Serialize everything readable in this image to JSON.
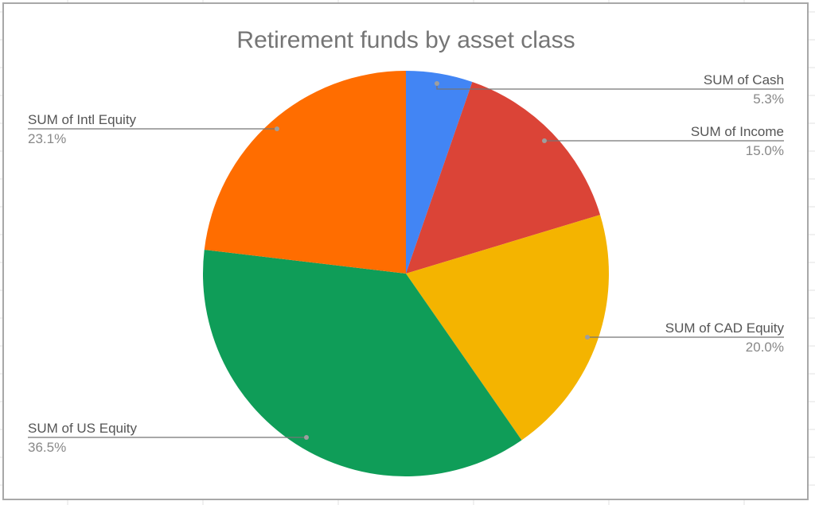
{
  "chart_data": {
    "type": "pie",
    "title": "Retirement funds by asset class",
    "slices": [
      {
        "label": "SUM of Cash",
        "value": 5.3,
        "display": "5.3%",
        "color": "#4285F4"
      },
      {
        "label": "SUM of Income",
        "value": 15.0,
        "display": "15.0%",
        "color": "#DB4437"
      },
      {
        "label": "SUM of CAD Equity",
        "value": 20.0,
        "display": "20.0%",
        "color": "#F4B400"
      },
      {
        "label": "SUM of US Equity",
        "value": 36.5,
        "display": "36.5%",
        "color": "#0F9D58"
      },
      {
        "label": "SUM of Intl Equity",
        "value": 23.1,
        "display": "23.1%",
        "color": "#FF6D00"
      }
    ],
    "start_angle": "top",
    "direction": "clockwise",
    "label_style": "leader lines with label and percent"
  }
}
